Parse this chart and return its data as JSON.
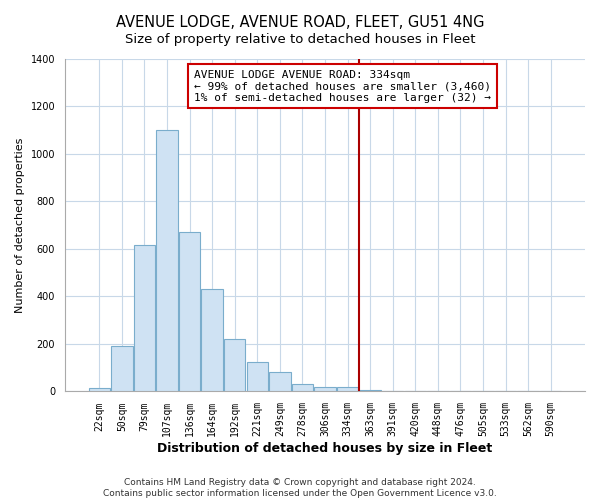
{
  "title": "AVENUE LODGE, AVENUE ROAD, FLEET, GU51 4NG",
  "subtitle": "Size of property relative to detached houses in Fleet",
  "xlabel": "Distribution of detached houses by size in Fleet",
  "ylabel": "Number of detached properties",
  "bar_color": "#cfe2f3",
  "bar_edge_color": "#7aadcc",
  "categories": [
    "22sqm",
    "50sqm",
    "79sqm",
    "107sqm",
    "136sqm",
    "164sqm",
    "192sqm",
    "221sqm",
    "249sqm",
    "278sqm",
    "306sqm",
    "334sqm",
    "363sqm",
    "391sqm",
    "420sqm",
    "448sqm",
    "476sqm",
    "505sqm",
    "533sqm",
    "562sqm",
    "590sqm"
  ],
  "values": [
    13,
    190,
    615,
    1100,
    670,
    430,
    220,
    125,
    80,
    33,
    20,
    20,
    8,
    3,
    2,
    0,
    0,
    0,
    0,
    0,
    0
  ],
  "vline_x_index": 11,
  "vline_color": "#aa0000",
  "annotation_title": "AVENUE LODGE AVENUE ROAD: 334sqm",
  "annotation_line1": "← 99% of detached houses are smaller (3,460)",
  "annotation_line2": "1% of semi-detached houses are larger (32) →",
  "annotation_box_color": "white",
  "annotation_box_edge_color": "#cc0000",
  "ylim": [
    0,
    1400
  ],
  "yticks": [
    0,
    200,
    400,
    600,
    800,
    1000,
    1200,
    1400
  ],
  "footer_line1": "Contains HM Land Registry data © Crown copyright and database right 2024.",
  "footer_line2": "Contains public sector information licensed under the Open Government Licence v3.0.",
  "title_fontsize": 10.5,
  "subtitle_fontsize": 9.5,
  "xlabel_fontsize": 9,
  "ylabel_fontsize": 8,
  "tick_fontsize": 7,
  "footer_fontsize": 6.5,
  "annotation_fontsize": 8,
  "background_color": "#ffffff",
  "grid_color": "#c8d8e8"
}
